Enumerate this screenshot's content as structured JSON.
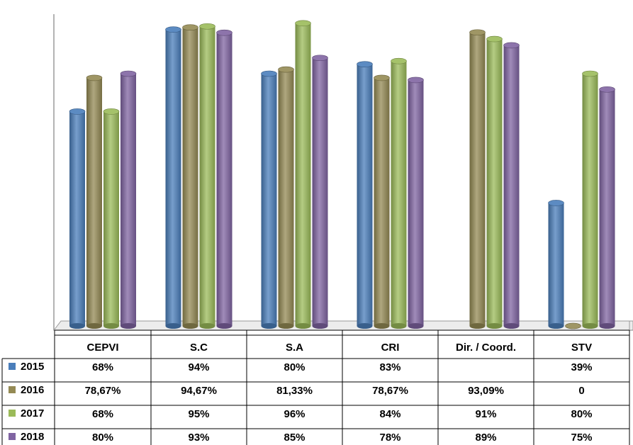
{
  "chart_data": {
    "type": "bar",
    "categories": [
      "CEPVI",
      "S.C",
      "S.A",
      "CRI",
      "Dir. / Coord.",
      "STV"
    ],
    "series": [
      {
        "name": "2015",
        "color": "#4A7EBB",
        "values": [
          68,
          94,
          80,
          83,
          null,
          39
        ],
        "labels": [
          "68%",
          "94%",
          "80%",
          "83%",
          "",
          "39%"
        ]
      },
      {
        "name": "2016",
        "color": "#948A54",
        "values": [
          78.67,
          94.67,
          81.33,
          78.67,
          93.09,
          0
        ],
        "labels": [
          "78,67%",
          "94,67%",
          "81,33%",
          "78,67%",
          "93,09%",
          "0"
        ]
      },
      {
        "name": "2017",
        "color": "#9BBB59",
        "values": [
          68,
          95,
          96,
          84,
          91,
          80
        ],
        "labels": [
          "68%",
          "95%",
          "96%",
          "84%",
          "91%",
          "80%"
        ]
      },
      {
        "name": "2018",
        "color": "#8064A2",
        "values": [
          80,
          93,
          85,
          78,
          89,
          75
        ],
        "labels": [
          "80%",
          "93%",
          "85%",
          "78%",
          "89%",
          "75%"
        ]
      }
    ],
    "ylim": [
      0,
      100
    ],
    "grid": false,
    "legend": "data-table"
  }
}
